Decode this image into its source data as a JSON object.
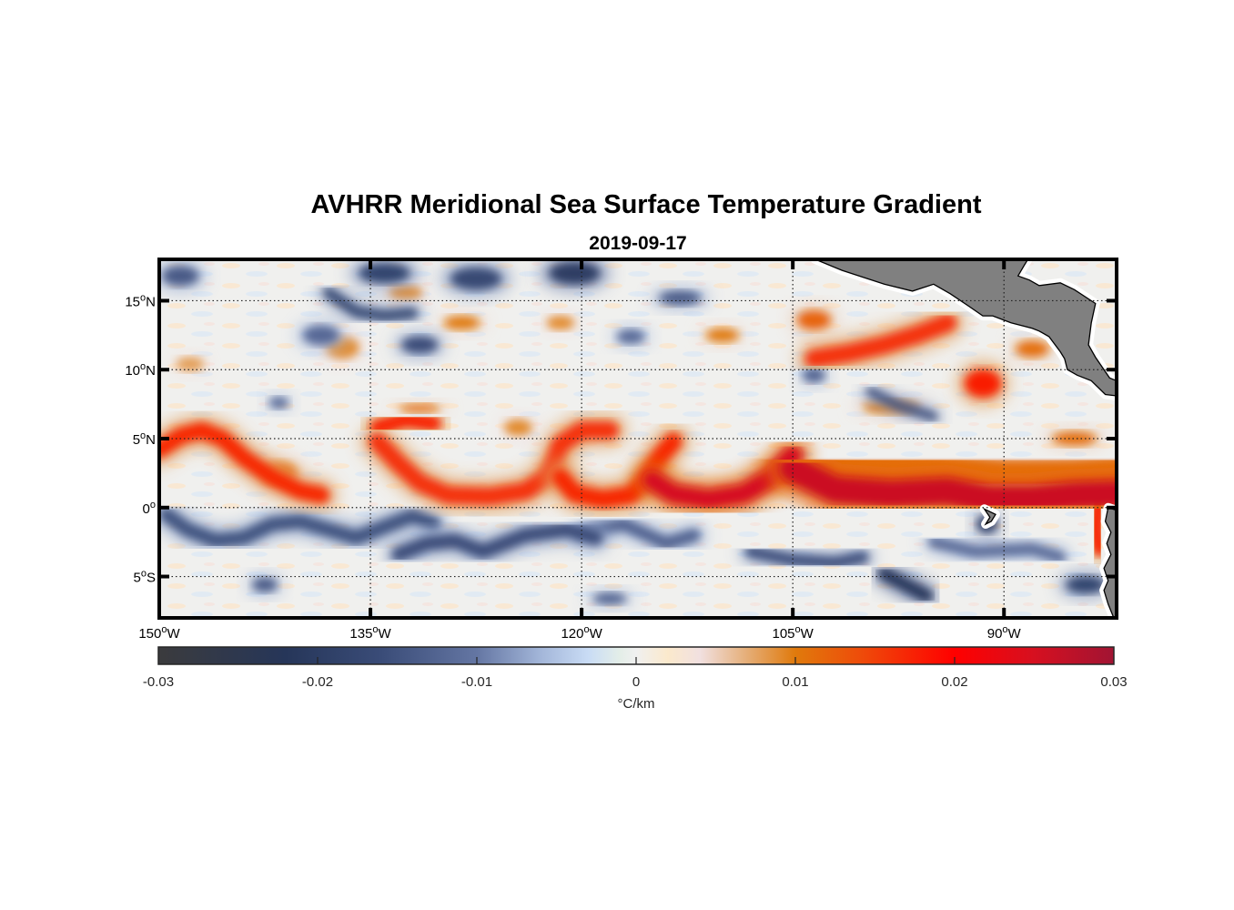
{
  "chart_data": {
    "type": "heatmap",
    "title": "AVHRR Meridional Sea Surface Temperature Gradient",
    "subtitle": "2019-09-17",
    "xlabel": "",
    "ylabel": "",
    "xlim": [
      -150,
      -82
    ],
    "ylim": [
      -8,
      18
    ],
    "grid": true,
    "x_ticks": [
      {
        "value": -150,
        "deg": "150",
        "hemi": "W"
      },
      {
        "value": -135,
        "deg": "135",
        "hemi": "W"
      },
      {
        "value": -120,
        "deg": "120",
        "hemi": "W"
      },
      {
        "value": -105,
        "deg": "105",
        "hemi": "W"
      },
      {
        "value": -90,
        "deg": "90",
        "hemi": "W"
      }
    ],
    "y_ticks": [
      {
        "value": 15,
        "deg": "15",
        "hemi": "N"
      },
      {
        "value": 10,
        "deg": "10",
        "hemi": "N"
      },
      {
        "value": 5,
        "deg": "5",
        "hemi": "N"
      },
      {
        "value": 0,
        "deg": "0",
        "hemi": ""
      },
      {
        "value": -5,
        "deg": "5",
        "hemi": "S"
      }
    ],
    "degree_symbol": "o",
    "colorbar": {
      "label": "°C/km",
      "range": [
        -0.03,
        0.03
      ],
      "ticks": [
        "-0.03",
        "-0.02",
        "-0.01",
        "0",
        "0.01",
        "0.02",
        "0.03"
      ],
      "tick_values": [
        -0.03,
        -0.02,
        -0.01,
        0,
        0.01,
        0.02,
        0.03
      ],
      "placement": "bottom",
      "colormap": [
        {
          "v": -0.03,
          "color": "#3b3b3d"
        },
        {
          "v": -0.022,
          "color": "#263659"
        },
        {
          "v": -0.016,
          "color": "#3a4c78"
        },
        {
          "v": -0.01,
          "color": "#6476a3"
        },
        {
          "v": -0.006,
          "color": "#a3b6d9"
        },
        {
          "v": -0.003,
          "color": "#c9dcf5"
        },
        {
          "v": -0.001,
          "color": "#e4eee8"
        },
        {
          "v": 0.0,
          "color": "#f0f0f0"
        },
        {
          "v": 0.002,
          "color": "#fbe9cc"
        },
        {
          "v": 0.004,
          "color": "#f1e0e0"
        },
        {
          "v": 0.007,
          "color": "#e5ad76"
        },
        {
          "v": 0.01,
          "color": "#e07a0c"
        },
        {
          "v": 0.014,
          "color": "#ee4d0a"
        },
        {
          "v": 0.02,
          "color": "#ff0000"
        },
        {
          "v": 0.025,
          "color": "#d61020"
        },
        {
          "v": 0.03,
          "color": "#a11433"
        }
      ]
    },
    "land_color": "#808080",
    "features": [
      {
        "name": "tiw-front-west-arc",
        "kind": "line",
        "value": 0.017,
        "width": 1.2,
        "path": [
          [
            -150,
            4.2
          ],
          [
            -148.5,
            5.2
          ],
          [
            -147,
            5.6
          ],
          [
            -145.5,
            5.0
          ],
          [
            -144,
            3.6
          ],
          [
            -142,
            2.2
          ],
          [
            -140,
            1.2
          ],
          [
            -138.5,
            0.9
          ]
        ]
      },
      {
        "name": "tiw-front-cusp-1",
        "kind": "line",
        "value": 0.018,
        "width": 1.0,
        "path": [
          [
            -134.5,
            5.8
          ],
          [
            -132.5,
            6.4
          ],
          [
            -130.5,
            6.1
          ]
        ]
      },
      {
        "name": "tiw-front-trough-1",
        "kind": "line",
        "value": 0.016,
        "width": 1.3,
        "path": [
          [
            -134.5,
            4.8
          ],
          [
            -133,
            3.2
          ],
          [
            -131.5,
            1.8
          ],
          [
            -129.5,
            0.9
          ],
          [
            -126.5,
            0.8
          ],
          [
            -124,
            1.2
          ],
          [
            -122.5,
            2.2
          ],
          [
            -122,
            3.2
          ],
          [
            -121.5,
            4.6
          ],
          [
            -120,
            5.6
          ],
          [
            -118,
            5.6
          ]
        ]
      },
      {
        "name": "tiw-front-trough-2",
        "kind": "line",
        "value": 0.017,
        "width": 1.3,
        "path": [
          [
            -121.5,
            2.2
          ],
          [
            -120.5,
            1.0
          ],
          [
            -118.5,
            0.6
          ],
          [
            -116.5,
            0.9
          ],
          [
            -115.5,
            2.0
          ],
          [
            -114.5,
            3.6
          ],
          [
            -113.5,
            4.8
          ]
        ]
      },
      {
        "name": "tiw-front-trough-3",
        "kind": "line",
        "value": 0.025,
        "width": 1.4,
        "path": [
          [
            -115,
            2.0
          ],
          [
            -113.5,
            1.0
          ],
          [
            -111,
            0.6
          ],
          [
            -108.5,
            1.0
          ],
          [
            -106.5,
            2.2
          ],
          [
            -105,
            3.8
          ]
        ]
      },
      {
        "name": "equatorial-front-east",
        "kind": "line",
        "value": 0.026,
        "width": 2.0,
        "path": [
          [
            -105,
            2.8
          ],
          [
            -102,
            1.3
          ],
          [
            -98,
            1.0
          ],
          [
            -94,
            1.2
          ],
          [
            -91,
            0.6
          ],
          [
            -88,
            0.6
          ],
          [
            -85,
            0.9
          ],
          [
            -82,
            1.0
          ]
        ]
      },
      {
        "name": "front-orange-halo-east",
        "kind": "line",
        "value": 0.011,
        "width": 3.0,
        "path": [
          [
            -105,
            3.2
          ],
          [
            -100,
            2.6
          ],
          [
            -95,
            2.4
          ],
          [
            -90,
            2.0
          ],
          [
            -85,
            2.0
          ],
          [
            -82,
            2.2
          ]
        ]
      },
      {
        "name": "coastal-front-peru",
        "kind": "line",
        "value": 0.018,
        "width": 1.0,
        "path": [
          [
            -83.2,
            0.6
          ],
          [
            -83.5,
            -1.5
          ],
          [
            -83.2,
            -3.0
          ]
        ]
      },
      {
        "name": "northern-band-10n",
        "kind": "line",
        "value": 0.016,
        "width": 1.3,
        "path": [
          [
            -103.5,
            10.8
          ],
          [
            -101,
            11.2
          ],
          [
            -98.5,
            11.8
          ],
          [
            -96,
            12.6
          ],
          [
            -94,
            13.4
          ]
        ]
      },
      {
        "name": "blob-9n-92w",
        "kind": "blob",
        "value": 0.018,
        "lon": -91.5,
        "lat": 9.0,
        "rx": 1.3,
        "ry": 1.0
      },
      {
        "name": "blob-13n-104w",
        "kind": "blob",
        "value": 0.012,
        "lon": -103.5,
        "lat": 13.6,
        "rx": 1.2,
        "ry": 0.7
      },
      {
        "name": "blob-11n-88w",
        "kind": "blob",
        "value": 0.011,
        "lon": -88,
        "lat": 11.5,
        "rx": 1.2,
        "ry": 0.6
      },
      {
        "name": "blob-15n-122w",
        "kind": "blob",
        "value": 0.009,
        "lon": -121.5,
        "lat": 13.4,
        "rx": 1.0,
        "ry": 0.5
      },
      {
        "name": "blob-13n-110w",
        "kind": "blob",
        "value": 0.01,
        "lon": -110,
        "lat": 12.5,
        "rx": 1.2,
        "ry": 0.5
      },
      {
        "name": "blob-16n-133w",
        "kind": "blob",
        "value": 0.009,
        "lon": -132.5,
        "lat": 15.6,
        "rx": 1.2,
        "ry": 0.5
      },
      {
        "name": "blob-14n-129w",
        "kind": "blob",
        "value": 0.01,
        "lon": -128.5,
        "lat": 13.4,
        "rx": 1.3,
        "ry": 0.5
      },
      {
        "name": "blob-11n-136w",
        "kind": "blob",
        "value": 0.009,
        "lon": -137,
        "lat": 11.6,
        "rx": 1.2,
        "ry": 0.8
      },
      {
        "name": "blob-10n-148w",
        "kind": "blob",
        "value": 0.008,
        "lon": -147.8,
        "lat": 10.4,
        "rx": 1.0,
        "ry": 0.5
      },
      {
        "name": "blob-7n-132w",
        "kind": "blob",
        "value": 0.011,
        "lon": -131.5,
        "lat": 7.2,
        "rx": 1.5,
        "ry": 0.3
      },
      {
        "name": "blob-2n-140w",
        "kind": "blob",
        "value": 0.011,
        "lon": -141.5,
        "lat": 2.5,
        "rx": 1.3,
        "ry": 0.8
      },
      {
        "name": "blob-6n-124w",
        "kind": "blob",
        "value": 0.009,
        "lon": -124.5,
        "lat": 5.8,
        "rx": 1.0,
        "ry": 0.6
      },
      {
        "name": "blob-7n-97w",
        "kind": "blob",
        "value": 0.01,
        "lon": -98,
        "lat": 7.3,
        "rx": 2.0,
        "ry": 0.5
      },
      {
        "name": "blob-5n-86w",
        "kind": "blob",
        "value": 0.011,
        "lon": -85,
        "lat": 5.0,
        "rx": 1.6,
        "ry": 0.5
      },
      {
        "name": "cold-17n-135w",
        "kind": "blob",
        "value": -0.018,
        "lon": -134,
        "lat": 17.0,
        "rx": 1.8,
        "ry": 0.7
      },
      {
        "name": "cold-17n-129w",
        "kind": "blob",
        "value": -0.017,
        "lon": -127.5,
        "lat": 16.6,
        "rx": 1.8,
        "ry": 0.8
      },
      {
        "name": "cold-17n-121w",
        "kind": "blob",
        "value": -0.02,
        "lon": -120.5,
        "lat": 17.0,
        "rx": 1.8,
        "ry": 0.8
      },
      {
        "name": "cold-14n-133w",
        "kind": "line",
        "value": -0.018,
        "width": 0.7,
        "path": [
          [
            -138,
            15.6
          ],
          [
            -136,
            14.2
          ],
          [
            -134,
            13.9
          ],
          [
            -132,
            14.1
          ]
        ]
      },
      {
        "name": "cold-11n-132w",
        "kind": "blob",
        "value": -0.016,
        "lon": -131.5,
        "lat": 11.8,
        "rx": 1.3,
        "ry": 0.6
      },
      {
        "name": "cold-12n-138w",
        "kind": "blob",
        "value": -0.012,
        "lon": -138.5,
        "lat": 12.5,
        "rx": 1.3,
        "ry": 0.7
      },
      {
        "name": "cold-17n-148w",
        "kind": "blob",
        "value": -0.014,
        "lon": -148.5,
        "lat": 16.8,
        "rx": 1.3,
        "ry": 0.7
      },
      {
        "name": "cold-15n-113w",
        "kind": "blob",
        "value": -0.014,
        "lon": -113,
        "lat": 15.2,
        "rx": 1.5,
        "ry": 0.5
      },
      {
        "name": "cold-12n-116w",
        "kind": "blob",
        "value": -0.012,
        "lon": -116.5,
        "lat": 12.4,
        "rx": 1.0,
        "ry": 0.5
      },
      {
        "name": "cold-7n-100w",
        "kind": "line",
        "value": -0.016,
        "width": 0.6,
        "path": [
          [
            -99.5,
            8.4
          ],
          [
            -97.5,
            7.4
          ],
          [
            -95,
            6.6
          ]
        ]
      },
      {
        "name": "cold-10n-104w",
        "kind": "blob",
        "value": -0.013,
        "lon": -103.5,
        "lat": 9.6,
        "rx": 0.8,
        "ry": 0.5
      },
      {
        "name": "cold-8n-141w",
        "kind": "blob",
        "value": -0.012,
        "lon": -141.5,
        "lat": 7.6,
        "rx": 0.7,
        "ry": 0.4
      },
      {
        "name": "cold-trough-west",
        "kind": "line",
        "value": -0.015,
        "width": 1.0,
        "path": [
          [
            -149.5,
            -0.5
          ],
          [
            -148,
            -1.6
          ],
          [
            -146,
            -2.4
          ],
          [
            -144,
            -2.2
          ],
          [
            -142,
            -1.2
          ],
          [
            -140,
            -1.0
          ],
          [
            -138,
            -1.6
          ],
          [
            -136,
            -2.2
          ],
          [
            -134,
            -1.4
          ],
          [
            -132,
            -0.6
          ],
          [
            -130.5,
            -1.2
          ]
        ]
      },
      {
        "name": "cold-trough-mid",
        "kind": "line",
        "value": -0.016,
        "width": 1.0,
        "path": [
          [
            -133,
            -3.4
          ],
          [
            -131,
            -2.6
          ],
          [
            -129,
            -2.4
          ],
          [
            -127,
            -3.2
          ],
          [
            -124,
            -2.0
          ],
          [
            -121,
            -1.6
          ],
          [
            -119,
            -2.2
          ]
        ]
      },
      {
        "name": "cold-3s-115w",
        "kind": "line",
        "value": -0.013,
        "width": 0.9,
        "path": [
          [
            -120,
            -1.8
          ],
          [
            -117,
            -1.2
          ],
          [
            -114,
            -2.6
          ],
          [
            -112,
            -2.0
          ]
        ]
      },
      {
        "name": "cold-5s-102w",
        "kind": "line",
        "value": -0.016,
        "width": 0.8,
        "path": [
          [
            -108,
            -3.2
          ],
          [
            -105,
            -3.8
          ],
          [
            -102,
            -4.0
          ],
          [
            -100,
            -3.6
          ]
        ]
      },
      {
        "name": "cold-6s-97w",
        "kind": "line",
        "value": -0.022,
        "width": 0.9,
        "path": [
          [
            -98.5,
            -4.8
          ],
          [
            -97,
            -5.6
          ],
          [
            -95.5,
            -6.4
          ]
        ]
      },
      {
        "name": "cold-2s-92w",
        "kind": "blob",
        "value": -0.02,
        "lon": -91.2,
        "lat": -1.2,
        "rx": 0.7,
        "ry": 0.6
      },
      {
        "name": "cold-6s-84w",
        "kind": "blob",
        "value": -0.018,
        "lon": -84.2,
        "lat": -5.6,
        "rx": 1.4,
        "ry": 0.6
      },
      {
        "name": "cold-3s-87w",
        "kind": "line",
        "value": -0.012,
        "width": 0.8,
        "path": [
          [
            -95,
            -2.5
          ],
          [
            -92,
            -3.2
          ],
          [
            -88,
            -3.0
          ],
          [
            -86,
            -3.6
          ]
        ]
      },
      {
        "name": "cold-6s-143w",
        "kind": "blob",
        "value": -0.014,
        "lon": -142.5,
        "lat": -5.6,
        "rx": 0.9,
        "ry": 0.5
      },
      {
        "name": "cold-6s-118w",
        "kind": "blob",
        "value": -0.013,
        "lon": -118,
        "lat": -6.6,
        "rx": 1.2,
        "ry": 0.4
      }
    ],
    "land": [
      {
        "name": "central-america-mexico",
        "polygon": [
          [
            -103.4,
            18
          ],
          [
            -101.5,
            17.2
          ],
          [
            -98.5,
            16.2
          ],
          [
            -96.5,
            15.7
          ],
          [
            -95,
            16.2
          ],
          [
            -93.8,
            15.5
          ],
          [
            -92.5,
            14.6
          ],
          [
            -91.5,
            13.9
          ],
          [
            -90.8,
            13.9
          ],
          [
            -89.5,
            13.4
          ],
          [
            -88,
            13.0
          ],
          [
            -87.5,
            12.8
          ],
          [
            -86.8,
            12.4
          ],
          [
            -86,
            11.3
          ],
          [
            -85.7,
            10.8
          ],
          [
            -85.5,
            10.0
          ],
          [
            -84.8,
            9.6
          ],
          [
            -83.8,
            9.2
          ],
          [
            -82.8,
            8.2
          ],
          [
            -82,
            8.1
          ],
          [
            -82,
            9.2
          ],
          [
            -82.5,
            9.4
          ],
          [
            -83.5,
            10.9
          ],
          [
            -84,
            11.8
          ],
          [
            -83.8,
            13.4
          ],
          [
            -83.5,
            14.8
          ],
          [
            -85,
            15.8
          ],
          [
            -86,
            16.3
          ],
          [
            -87.5,
            16.1
          ],
          [
            -88.2,
            16.5
          ],
          [
            -89,
            16.8
          ],
          [
            -88.6,
            17.5
          ],
          [
            -88.3,
            18
          ]
        ]
      },
      {
        "name": "south-america-ecuador",
        "polygon": [
          [
            -82,
            -0.2
          ],
          [
            -82.6,
            0.0
          ],
          [
            -82.8,
            -1.0
          ],
          [
            -82.4,
            -1.8
          ],
          [
            -82.7,
            -2.6
          ],
          [
            -82.4,
            -3.4
          ],
          [
            -82.9,
            -4.4
          ],
          [
            -82.6,
            -5.3
          ],
          [
            -82.9,
            -6.0
          ],
          [
            -82.6,
            -7.0
          ],
          [
            -82.2,
            -8.0
          ],
          [
            -82,
            -8.0
          ]
        ]
      },
      {
        "name": "galapagos",
        "polygon": [
          [
            -91.4,
            -0.1
          ],
          [
            -90.6,
            -0.5
          ],
          [
            -90.9,
            -1.0
          ],
          [
            -91.3,
            -1.2
          ],
          [
            -91.0,
            -0.7
          ]
        ]
      }
    ]
  }
}
